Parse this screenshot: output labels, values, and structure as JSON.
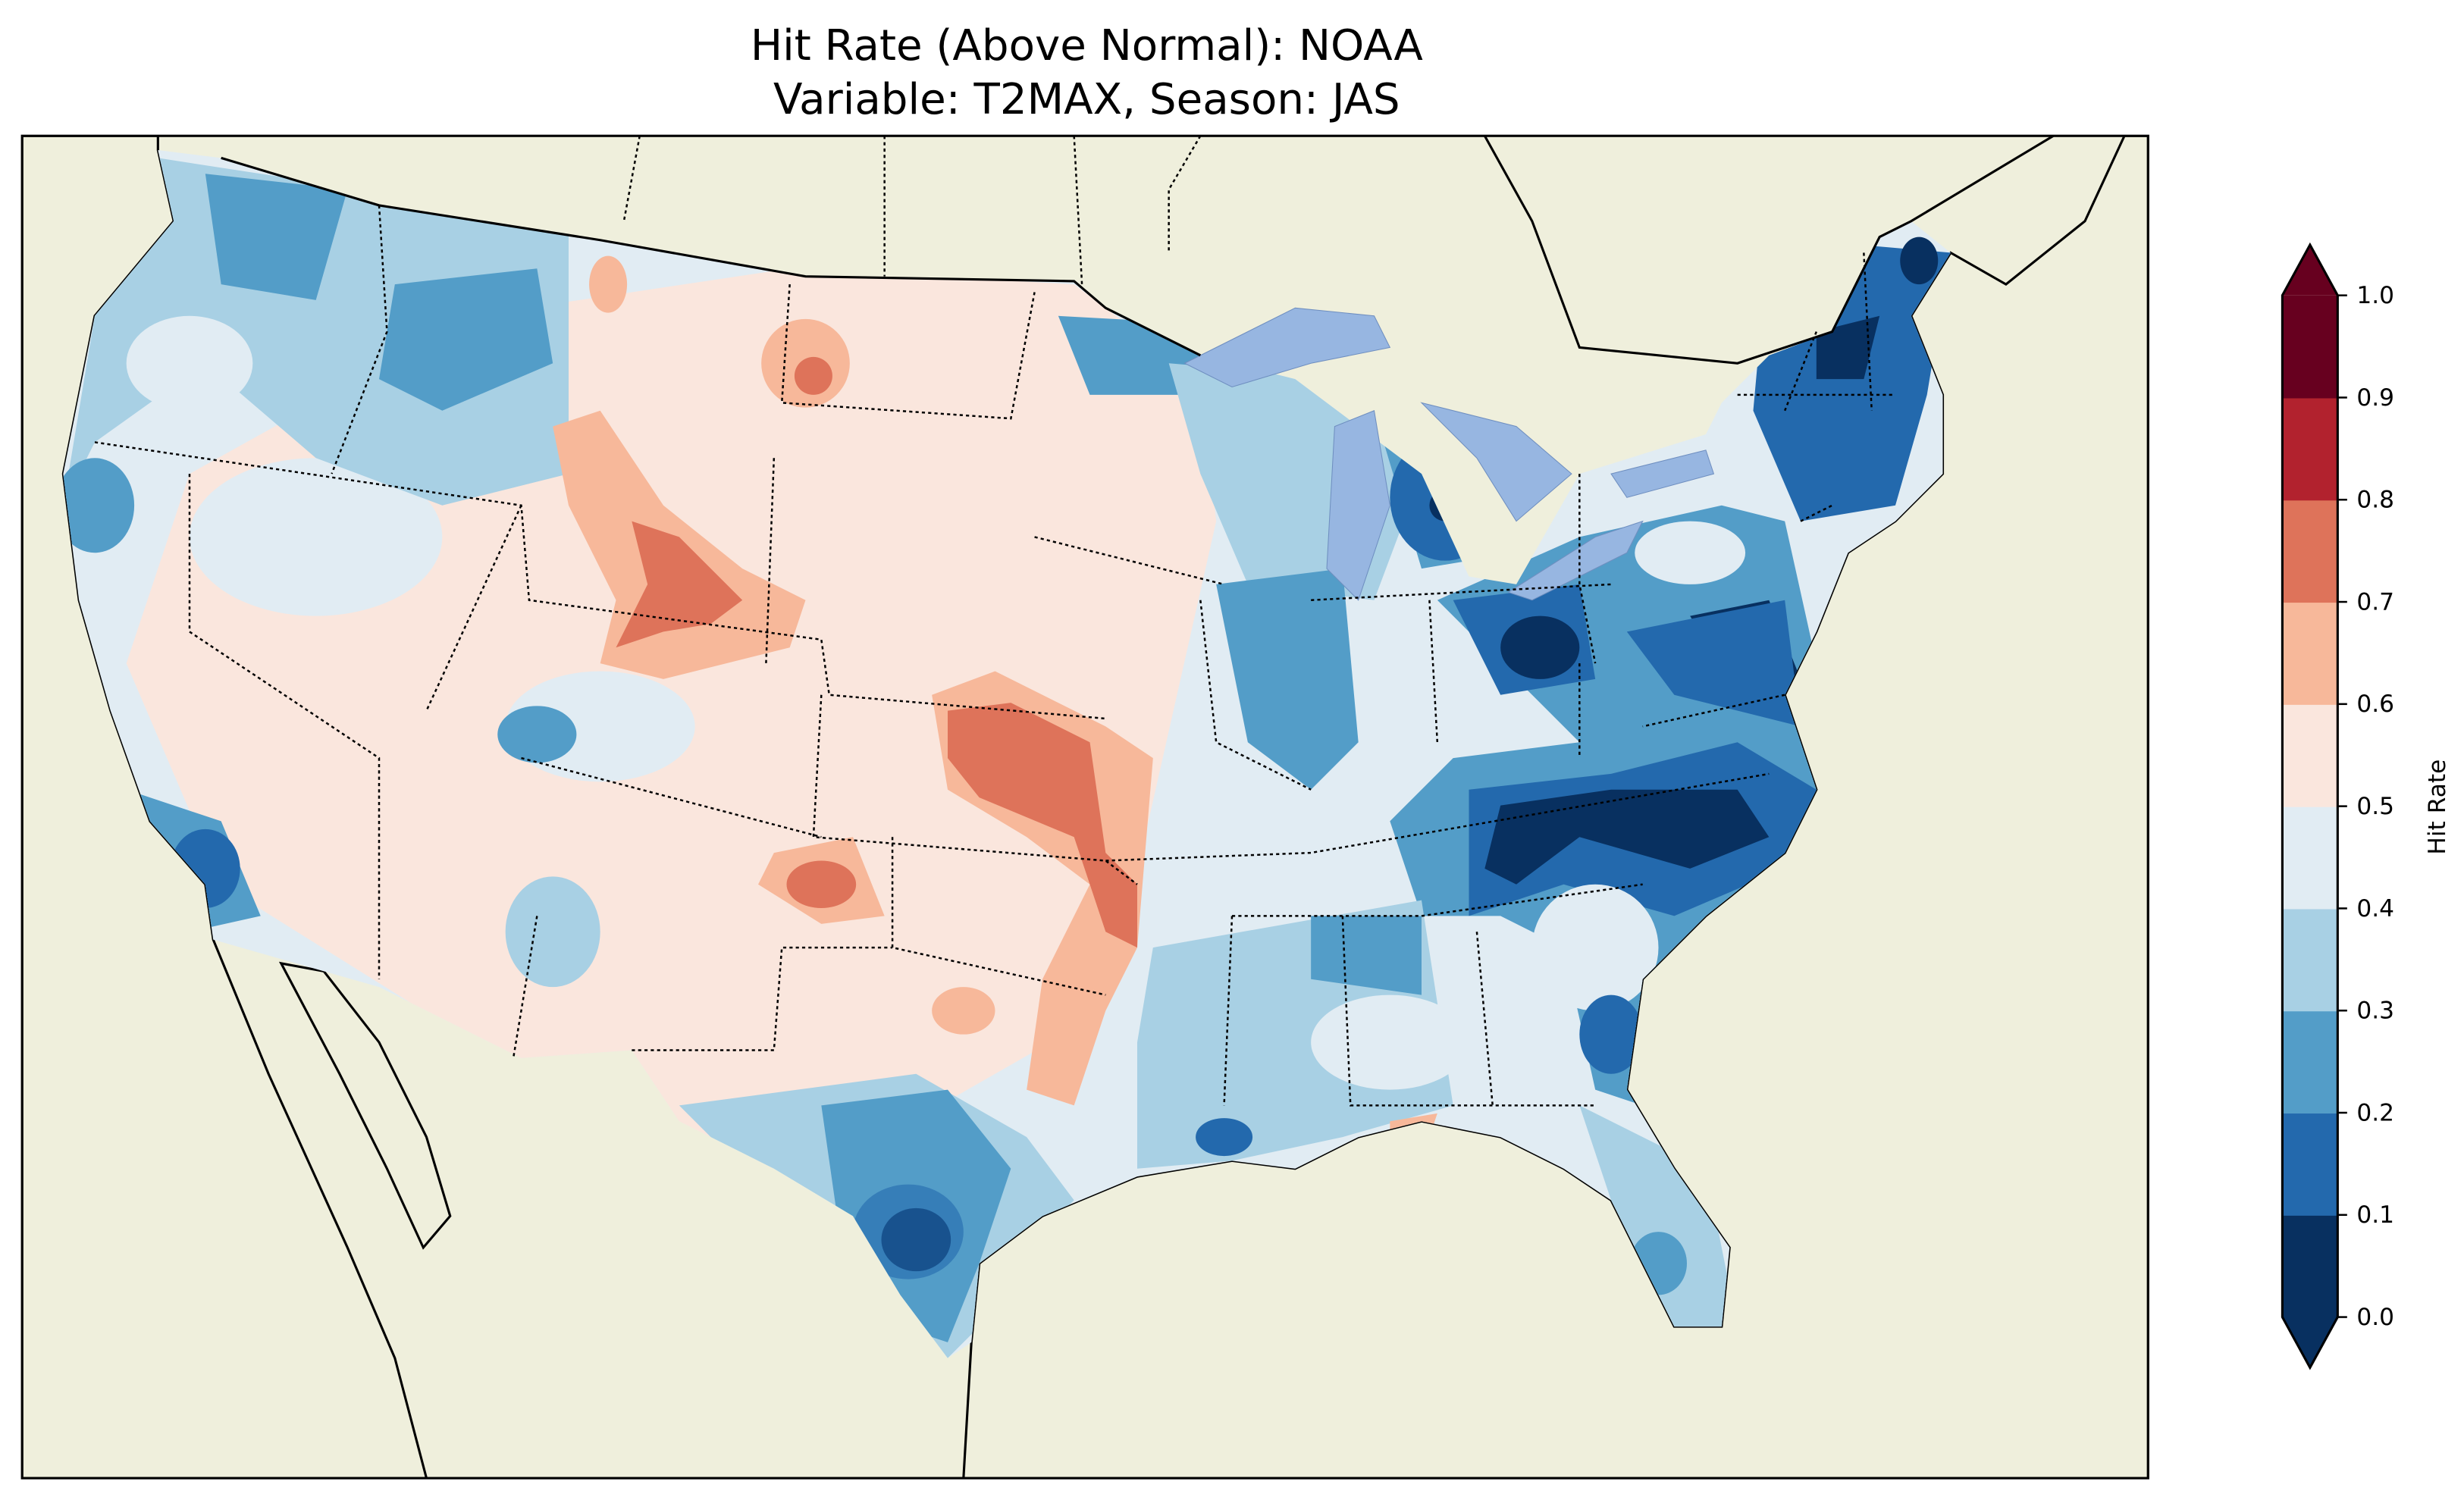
{
  "title": {
    "line1": "Hit Rate (Above Normal): NOAA",
    "line2": "Variable: T2MAX, Season: JAS"
  },
  "colors": {
    "ocean": "#97b6e1",
    "land": "#efefdc",
    "bins": [
      "#083060",
      "#2369ad",
      "#539dc8",
      "#a8d0e4",
      "#e1ecf3",
      "#fae6dd",
      "#f7b89a",
      "#de735a",
      "#b2222e",
      "#67001f"
    ]
  },
  "colorbar": {
    "label": "Hit Rate",
    "ticks": [
      "0.0",
      "0.1",
      "0.2",
      "0.3",
      "0.4",
      "0.5",
      "0.6",
      "0.7",
      "0.8",
      "0.9",
      "1.0"
    ],
    "range": [
      0.0,
      1.0
    ],
    "extend": "both"
  }
}
